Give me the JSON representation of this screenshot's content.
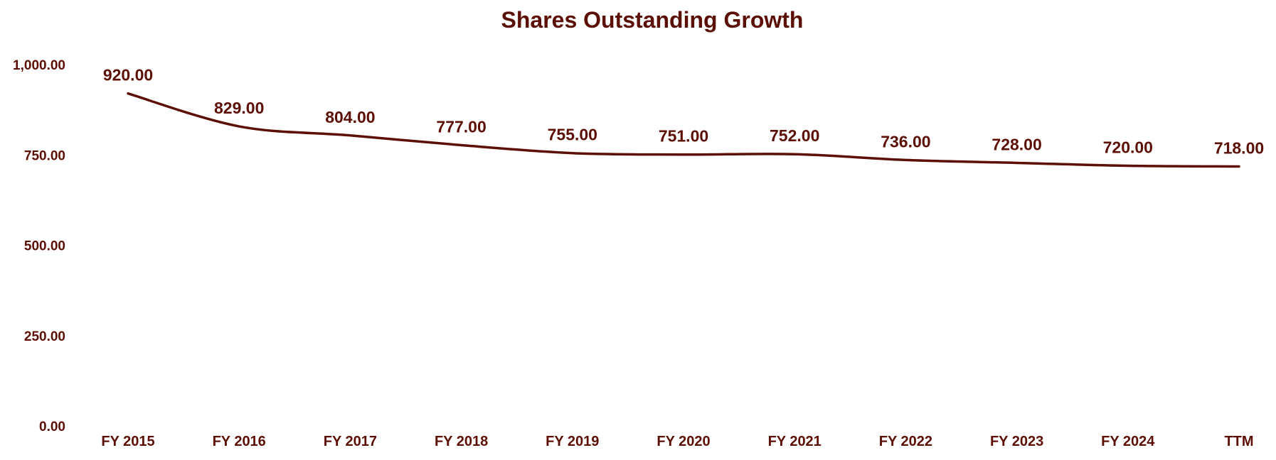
{
  "chart_data": {
    "type": "line",
    "title": "Shares Outstanding Growth",
    "xlabel": "",
    "ylabel": "",
    "categories": [
      "FY 2015",
      "FY 2016",
      "FY 2017",
      "FY 2018",
      "FY 2019",
      "FY 2020",
      "FY 2021",
      "FY 2022",
      "FY 2023",
      "FY 2024",
      "TTM"
    ],
    "series": [
      {
        "name": "Shares Outstanding",
        "values": [
          920.0,
          829.0,
          804.0,
          777.0,
          755.0,
          751.0,
          752.0,
          736.0,
          728.0,
          720.0,
          718.0
        ],
        "labels": [
          "920.00",
          "829.00",
          "804.00",
          "777.00",
          "755.00",
          "751.00",
          "752.00",
          "736.00",
          "728.00",
          "720.00",
          "718.00"
        ]
      }
    ],
    "ylim": [
      0,
      1000
    ],
    "yticks": [
      0,
      250,
      500,
      750,
      1000
    ],
    "ytick_labels": [
      "0.00",
      "250.00",
      "500.00",
      "750.00",
      "1,000.00"
    ],
    "grid": false,
    "legend": "none",
    "color": "#5c0f05"
  }
}
